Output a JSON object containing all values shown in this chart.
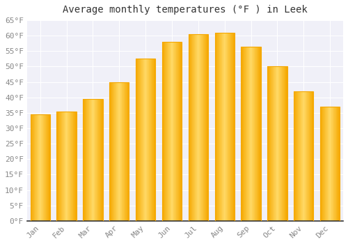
{
  "title": "Average monthly temperatures (°F ) in Leek",
  "months": [
    "Jan",
    "Feb",
    "Mar",
    "Apr",
    "May",
    "Jun",
    "Jul",
    "Aug",
    "Sep",
    "Oct",
    "Nov",
    "Dec"
  ],
  "values": [
    34.5,
    35.5,
    39.5,
    45,
    52.5,
    58,
    60.5,
    61,
    56.5,
    50,
    42,
    37
  ],
  "bar_color_center": "#FFD966",
  "bar_color_edge": "#F5A800",
  "background_color": "#FFFFFF",
  "plot_bg_color": "#F0F0F8",
  "grid_color": "#FFFFFF",
  "ylim": [
    0,
    65
  ],
  "ytick_step": 5,
  "title_fontsize": 10,
  "tick_fontsize": 8,
  "font_family": "monospace",
  "bar_width": 0.75
}
